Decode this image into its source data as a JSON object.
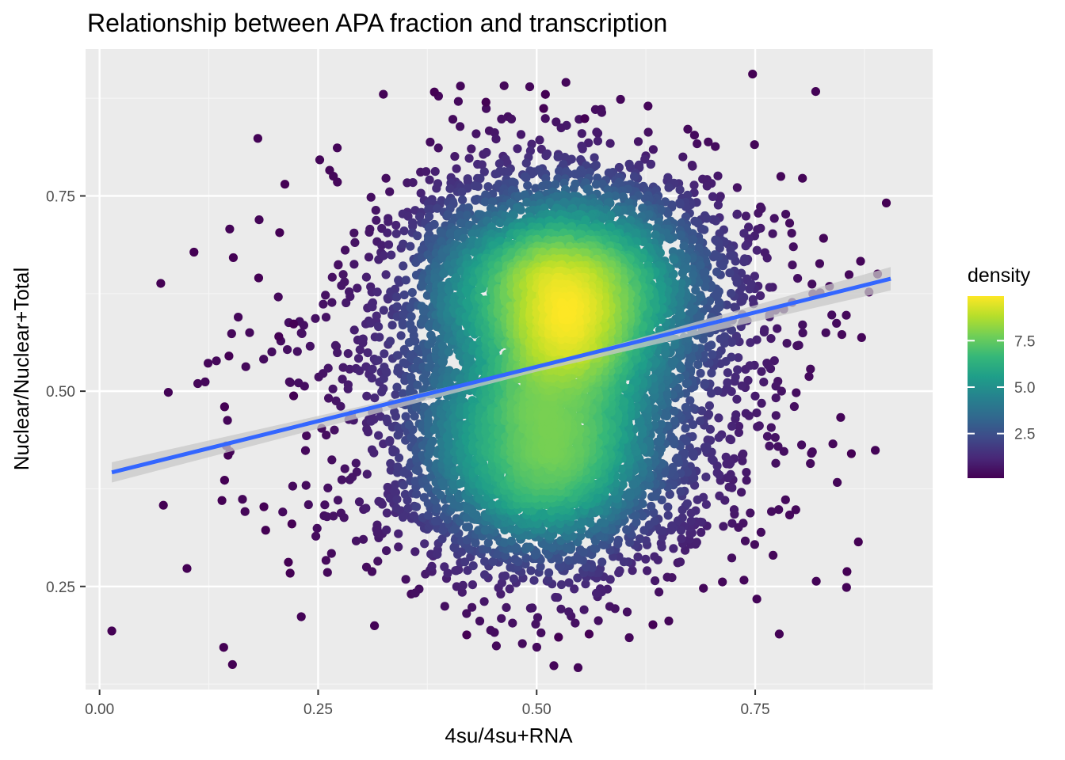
{
  "chart_data": {
    "type": "scatter",
    "title": "Relationship between APA fraction and transcription",
    "xlabel": "4su/4su+RNA",
    "ylabel": "Nuclear/Nuclear+Total",
    "xlim": [
      -0.016,
      0.953
    ],
    "ylim": [
      0.118,
      0.938
    ],
    "x_ticks": [
      0.0,
      0.25,
      0.5,
      0.75
    ],
    "x_tick_labels": [
      "0.00",
      "0.25",
      "0.50",
      "0.75"
    ],
    "y_ticks": [
      0.25,
      0.5,
      0.75
    ],
    "y_tick_labels": [
      "0.25",
      "0.50",
      "0.75"
    ],
    "grid": true,
    "legend": {
      "title": "density",
      "placement": "right",
      "type": "colorbar",
      "ticks": [
        2.5,
        5.0,
        7.5
      ],
      "tick_labels": [
        "2.5",
        "5.0",
        "7.5"
      ],
      "range": [
        0.1,
        9.9
      ]
    },
    "colors": {
      "panel_background": "#ebebeb",
      "grid_major": "#ffffff",
      "grid_minor": "#f5f5f5",
      "regression_line": "#3366ff",
      "confidence_band": "#c8c8c8",
      "viridis": [
        "#440154",
        "#482878",
        "#3e4a89",
        "#31688e",
        "#26828e",
        "#1f9e89",
        "#35b779",
        "#6ece58",
        "#b5de2b",
        "#fde725"
      ]
    },
    "regression": {
      "method": "lm",
      "x": [
        0.014,
        0.905
      ],
      "y": [
        0.396,
        0.644
      ],
      "se_band": [
        [
          0.014,
          0.383,
          0.409
        ],
        [
          0.5,
          0.525,
          0.531
        ],
        [
          0.905,
          0.629,
          0.659
        ]
      ]
    },
    "point_cloud": {
      "n_points": 9000,
      "components": [
        {
          "weight": 0.46,
          "x_mean": 0.535,
          "x_sd": 0.085,
          "y_mean": 0.63,
          "y_sd": 0.075
        },
        {
          "weight": 0.34,
          "x_mean": 0.505,
          "x_sd": 0.08,
          "y_mean": 0.42,
          "y_sd": 0.075
        },
        {
          "weight": 0.2,
          "x_mean": 0.52,
          "x_sd": 0.13,
          "y_mean": 0.53,
          "y_sd": 0.13
        }
      ]
    },
    "outliers": [
      [
        0.014,
        0.193
      ],
      [
        0.07,
        0.638
      ],
      [
        0.073,
        0.354
      ],
      [
        0.1,
        0.273
      ],
      [
        0.108,
        0.678
      ],
      [
        0.14,
        0.36
      ],
      [
        0.142,
        0.172
      ],
      [
        0.143,
        0.48
      ],
      [
        0.143,
        0.386
      ],
      [
        0.145,
        0.43
      ],
      [
        0.147,
        0.418
      ],
      [
        0.148,
        0.545
      ],
      [
        0.152,
        0.15
      ],
      [
        0.153,
        0.671
      ],
      [
        0.182,
        0.645
      ],
      [
        0.188,
        0.352
      ],
      [
        0.19,
        0.322
      ],
      [
        0.205,
        0.57
      ],
      [
        0.206,
        0.703
      ],
      [
        0.212,
        0.765
      ],
      [
        0.216,
        0.281
      ],
      [
        0.218,
        0.267
      ],
      [
        0.22,
        0.33
      ],
      [
        0.222,
        0.586
      ],
      [
        0.222,
        0.494
      ],
      [
        0.747,
        0.906
      ],
      [
        0.9,
        0.741
      ],
      [
        0.383,
        0.883
      ],
      [
        0.442,
        0.87
      ],
      [
        0.51,
        0.88
      ],
      [
        0.508,
        0.862
      ],
      [
        0.555,
        0.849
      ],
      [
        0.42,
        0.188
      ],
      [
        0.525,
        0.185
      ],
      [
        0.56,
        0.189
      ],
      [
        0.633,
        0.201
      ],
      [
        0.855,
        0.269
      ],
      [
        0.868,
        0.307
      ],
      [
        0.86,
        0.42
      ],
      [
        0.89,
        0.65
      ]
    ]
  }
}
